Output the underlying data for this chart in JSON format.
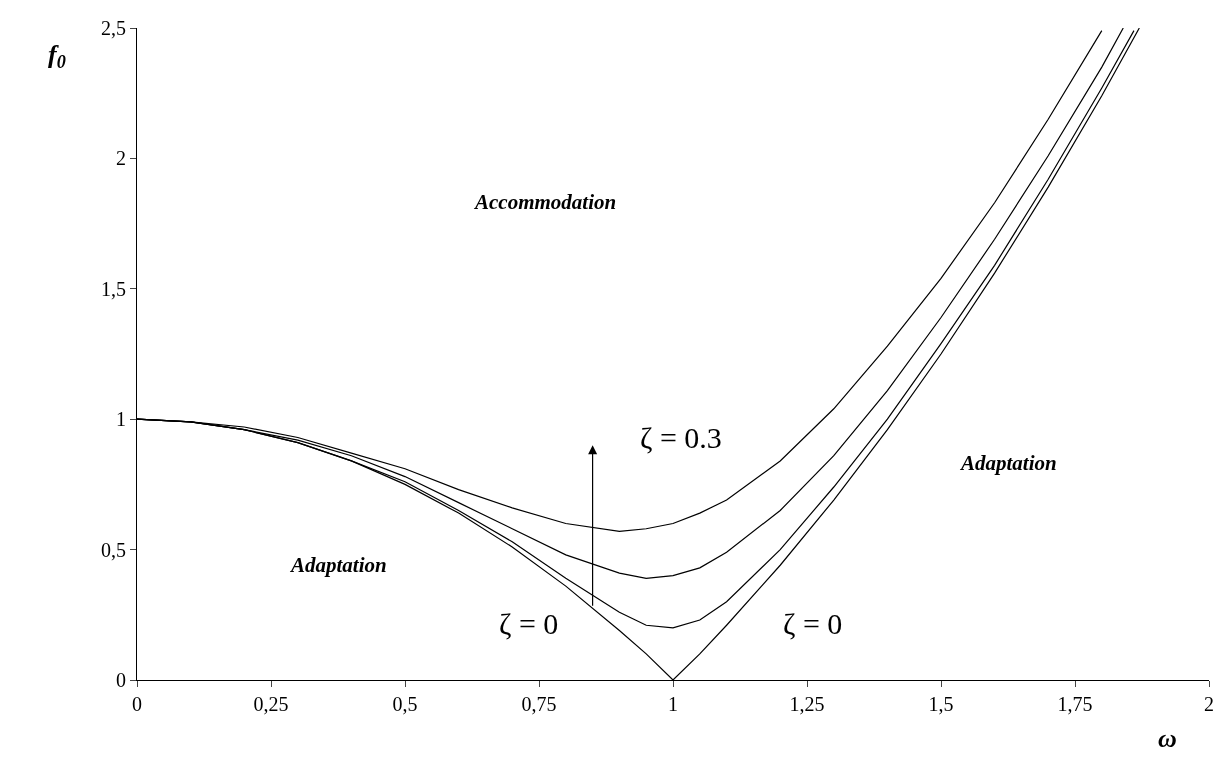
{
  "chart_data": {
    "type": "line",
    "xlabel": "ω",
    "ylabel": "f$_{0}$",
    "x": [
      0,
      0.1,
      0.2,
      0.3,
      0.4,
      0.5,
      0.6,
      0.7,
      0.8,
      0.9,
      0.95,
      1.0,
      1.05,
      1.1,
      1.2,
      1.3,
      1.4,
      1.5,
      1.6,
      1.7,
      1.8
    ],
    "series": [
      {
        "color": "#000000",
        "values": [
          1,
          0.99,
          0.96,
          0.91,
          0.84,
          0.75,
          0.64,
          0.51,
          0.36,
          0.19,
          0.1,
          0,
          0.1,
          0.21,
          0.44,
          0.69,
          0.96,
          1.25,
          1.56,
          1.89,
          2.24,
          2.5
        ],
        "x": [
          0,
          0.1,
          0.2,
          0.3,
          0.4,
          0.5,
          0.6,
          0.7,
          0.8,
          0.9,
          0.95,
          1.0,
          1.05,
          1.1,
          1.2,
          1.3,
          1.4,
          1.5,
          1.6,
          1.7,
          1.8,
          1.87
        ]
      },
      {
        "color": "#000000",
        "values": [
          1,
          0.99,
          0.96,
          0.91,
          0.84,
          0.76,
          0.65,
          0.53,
          0.39,
          0.26,
          0.21,
          0.2,
          0.23,
          0.3,
          0.5,
          0.74,
          1.0,
          1.29,
          1.59,
          1.92,
          2.27,
          2.49
        ],
        "x": [
          0,
          0.1,
          0.2,
          0.3,
          0.4,
          0.5,
          0.6,
          0.7,
          0.8,
          0.9,
          0.95,
          1.0,
          1.05,
          1.1,
          1.2,
          1.3,
          1.4,
          1.5,
          1.6,
          1.7,
          1.8,
          1.86
        ]
      },
      {
        "color": "#000000",
        "values": [
          1,
          0.99,
          0.96,
          0.92,
          0.86,
          0.78,
          0.68,
          0.58,
          0.48,
          0.41,
          0.39,
          0.4,
          0.43,
          0.49,
          0.65,
          0.86,
          1.11,
          1.39,
          1.69,
          2.01,
          2.35,
          2.5
        ],
        "x": [
          0,
          0.1,
          0.2,
          0.3,
          0.4,
          0.5,
          0.6,
          0.7,
          0.8,
          0.9,
          0.95,
          1.0,
          1.05,
          1.1,
          1.2,
          1.3,
          1.4,
          1.5,
          1.6,
          1.7,
          1.8,
          1.84
        ]
      },
      {
        "color": "#000000",
        "values": [
          1,
          0.99,
          0.97,
          0.93,
          0.87,
          0.81,
          0.73,
          0.66,
          0.6,
          0.57,
          0.58,
          0.6,
          0.64,
          0.69,
          0.84,
          1.04,
          1.28,
          1.54,
          1.83,
          2.15,
          2.49
        ]
      }
    ],
    "xlim": [
      0,
      2
    ],
    "ylim": [
      0,
      2.5
    ],
    "xticks": [
      0,
      {
        "value": 0.25,
        "label": "0,25"
      },
      {
        "value": 0.5,
        "label": "0,5"
      },
      {
        "value": 0.75,
        "label": "0,75"
      },
      1,
      {
        "value": 1.25,
        "label": "1,25"
      },
      {
        "value": 1.5,
        "label": "1,5"
      },
      {
        "value": 1.75,
        "label": "1,75"
      },
      2
    ],
    "yticks": [
      0,
      {
        "value": 0.5,
        "label": "0,5"
      },
      1,
      {
        "value": 1.5,
        "label": "1,5"
      },
      2,
      {
        "value": 2.5,
        "label": "2,5"
      }
    ],
    "marker": "none",
    "line_style": "solid",
    "annotations": [
      "ζ = 0.3",
      "ζ = 0",
      "ζ = 0",
      "Accommodation",
      "Adaptation",
      "Adaptation"
    ]
  }
}
